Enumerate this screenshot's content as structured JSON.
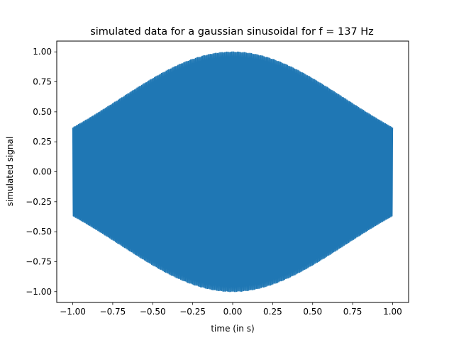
{
  "chart_data": {
    "type": "line",
    "title": "simulated data for a gaussian sinusoidal for f = 137 Hz",
    "xlabel": "time (in s)",
    "ylabel": "simulated signal",
    "xlim": [
      -1.1,
      1.1
    ],
    "ylim": [
      -1.09,
      1.09
    ],
    "xticks": [
      -1.0,
      -0.75,
      -0.5,
      -0.25,
      0.0,
      0.25,
      0.5,
      0.75,
      1.0
    ],
    "xtick_labels": [
      "−1.00",
      "−0.75",
      "−0.50",
      "−0.25",
      "0.00",
      "0.25",
      "0.50",
      "0.75",
      "1.00"
    ],
    "yticks": [
      -1.0,
      -0.75,
      -0.5,
      -0.25,
      0.0,
      0.25,
      0.5,
      0.75,
      1.0
    ],
    "ytick_labels": [
      "−1.00",
      "−0.75",
      "−0.50",
      "−0.25",
      "0.00",
      "0.25",
      "0.50",
      "0.75",
      "1.00"
    ],
    "grid": false,
    "series": [
      {
        "color": "#1f77b4",
        "function": "exp(-t^2) * cos(2*pi*137*t)",
        "frequency_hz": 137,
        "x_range": [
          -1.0,
          1.0
        ],
        "envelope": {
          "t": [
            -1.0,
            -0.75,
            -0.5,
            -0.25,
            0.0,
            0.25,
            0.5,
            0.75,
            1.0
          ],
          "amplitude": [
            0.37,
            0.57,
            0.78,
            0.94,
            1.0,
            0.94,
            0.78,
            0.57,
            0.37
          ]
        }
      }
    ]
  }
}
